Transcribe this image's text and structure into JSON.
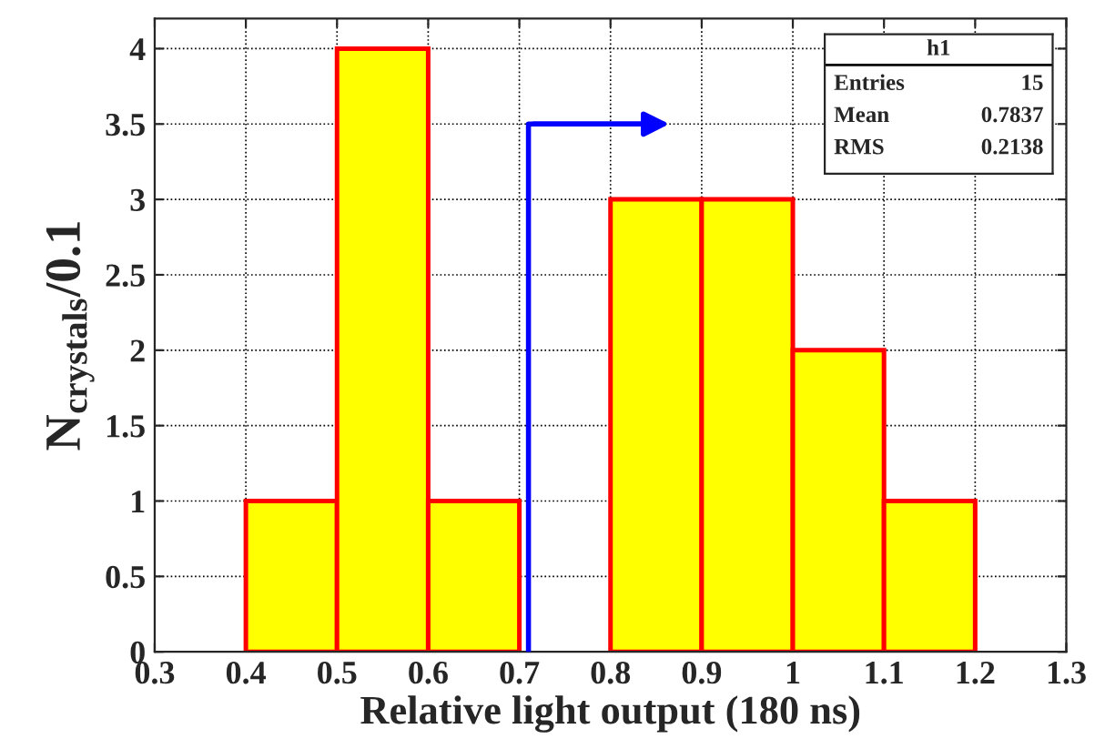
{
  "chart_data": {
    "type": "histogram",
    "xlabel": "Relative light output (180 ns)",
    "ylabel": "N$_{crystals}$/0.1",
    "bins": [
      0.3,
      0.4,
      0.5,
      0.6,
      0.7,
      0.8,
      0.9,
      1.0,
      1.1,
      1.2,
      1.3
    ],
    "values": [
      0,
      1,
      4,
      1,
      0,
      3,
      3,
      2,
      1,
      0
    ],
    "color": "#ffff00",
    "xlim": [
      0.3,
      1.3
    ],
    "xticks": [
      0.3,
      0.4,
      0.5,
      0.6,
      0.7,
      0.8,
      0.9,
      {
        "value": 1.0,
        "label": "1"
      },
      1.1,
      1.2,
      1.3
    ],
    "ylim": [
      0,
      4.2
    ],
    "yticks": [
      0,
      0.5,
      {
        "value": 1,
        "label": "1"
      },
      1.5,
      {
        "value": 2,
        "label": "2"
      },
      2.5,
      {
        "value": 3,
        "label": "3"
      },
      3.5,
      {
        "value": 4,
        "label": "4"
      }
    ],
    "grid": true,
    "ref_lines": [
      {
        "axis": "x",
        "value": 0.71,
        "color": "#0000ff",
        "line_style": "solid"
      }
    ],
    "annotations": [
      "h1",
      "Entries",
      "15",
      "Mean",
      "0.7837",
      "RMS",
      "0.2138"
    ]
  }
}
